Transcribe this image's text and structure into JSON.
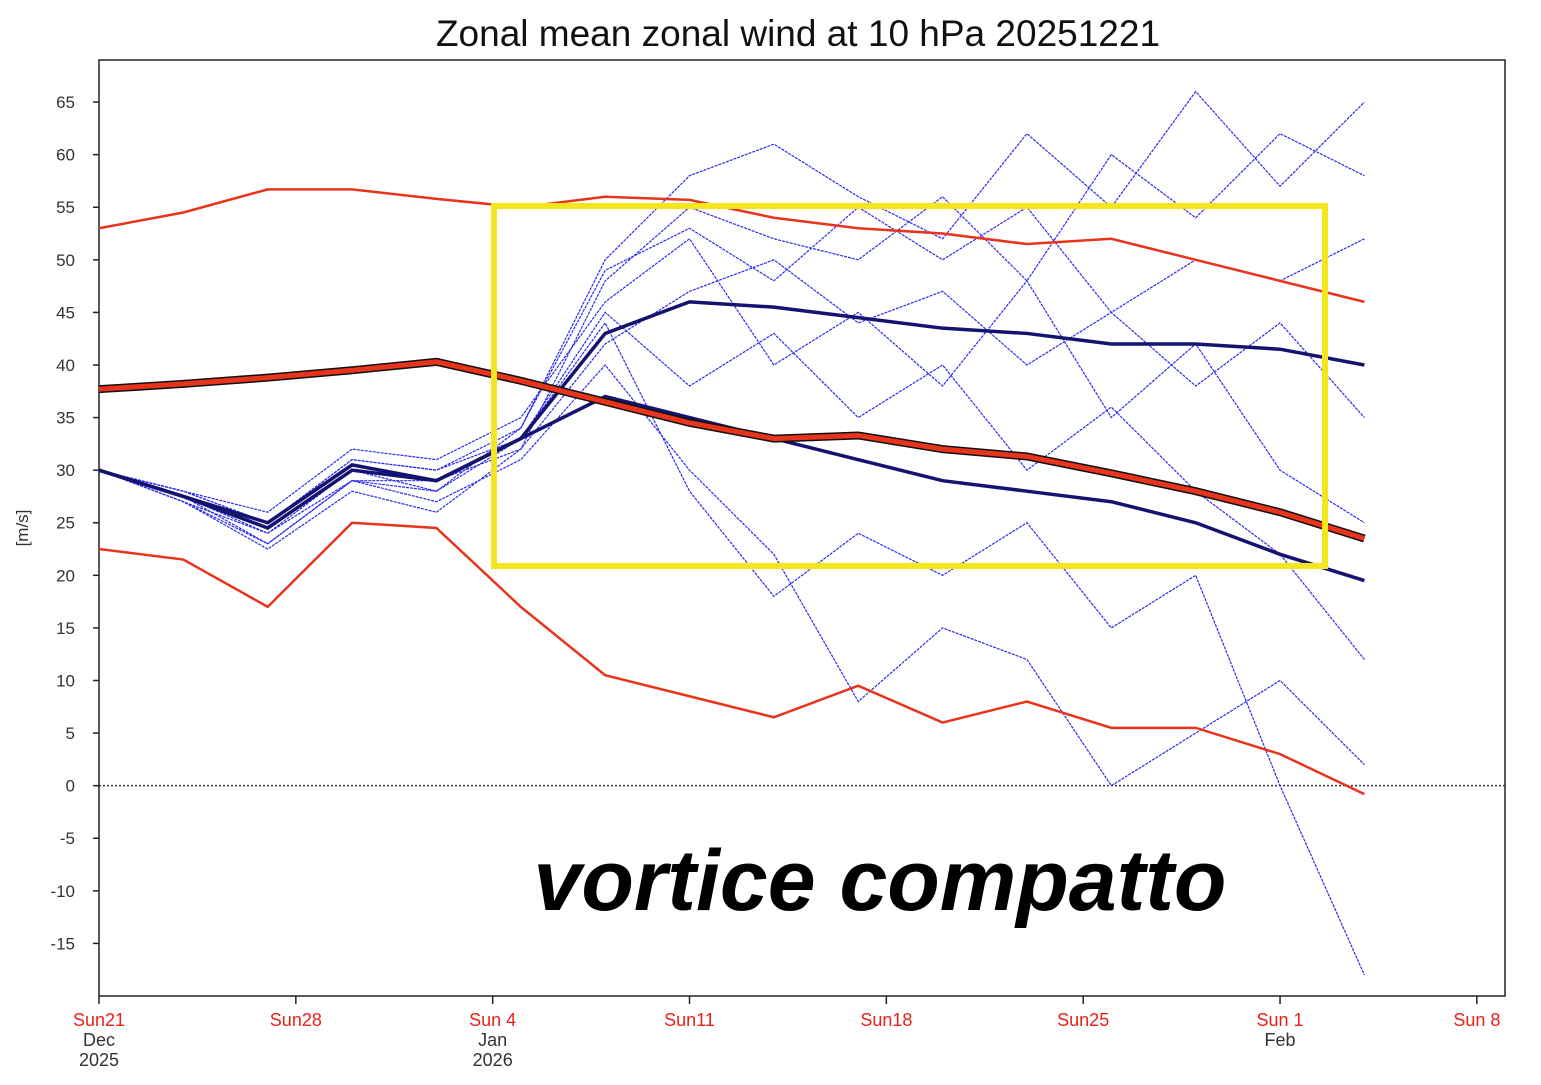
{
  "chart_data": {
    "type": "line",
    "title": "Zonal mean zonal wind at 10 hPa 20251221",
    "y_label": "[m/s]",
    "annotation": "vortice compatto",
    "x": [
      "2025-12-21",
      "2025-12-24",
      "2025-12-27",
      "2025-12-30",
      "2026-01-02",
      "2026-01-05",
      "2026-01-08",
      "2026-01-11",
      "2026-01-14",
      "2026-01-17",
      "2026-01-20",
      "2026-01-23",
      "2026-01-26",
      "2026-01-29",
      "2026-02-01",
      "2026-02-04"
    ],
    "xlim": [
      "2025-12-21",
      "2026-02-09"
    ],
    "xticks": [
      {
        "value": "2025-12-21",
        "label": "Sun21"
      },
      {
        "value": "2025-12-28",
        "label": "Sun28"
      },
      {
        "value": "2026-01-04",
        "label": "Sun 4"
      },
      {
        "value": "2026-01-11",
        "label": "Sun11"
      },
      {
        "value": "2026-01-18",
        "label": "Sun18"
      },
      {
        "value": "2026-01-25",
        "label": "Sun25"
      },
      {
        "value": "2026-02-01",
        "label": "Sun 1"
      },
      {
        "value": "2026-02-08",
        "label": "Sun 8"
      }
    ],
    "x_period_labels": [
      {
        "value": "2025-12-21",
        "label": "Dec",
        "year": "2025"
      },
      {
        "value": "2026-01-04",
        "label": "Jan",
        "year": "2026"
      },
      {
        "value": "2026-02-01",
        "label": "Feb"
      }
    ],
    "ylim": [
      -20,
      69
    ],
    "yticks": [
      -15,
      -10,
      -5,
      0,
      5,
      10,
      15,
      20,
      25,
      30,
      35,
      40,
      45,
      50,
      55,
      60,
      65
    ],
    "reference_line": 0,
    "tick_color": "#e8211a",
    "series": [
      {
        "color": "#2b2bf0",
        "values": [
          30,
          27,
          22.5,
          28,
          26,
          32,
          48,
          55,
          52,
          50,
          56,
          48,
          60,
          54,
          62,
          58
        ]
      },
      {
        "color": "#2b2bf0",
        "values": [
          30,
          27.5,
          23,
          29,
          27,
          31,
          40,
          30,
          22,
          8,
          15,
          12,
          0,
          5,
          10,
          2
        ]
      },
      {
        "color": "#2b2bf0",
        "values": [
          30,
          28,
          25,
          31,
          30,
          34,
          50,
          58,
          61,
          56,
          52,
          62,
          55,
          66,
          57,
          65
        ]
      },
      {
        "color": "#2b2bf0",
        "values": [
          30,
          27,
          24,
          30,
          28,
          33,
          44,
          28,
          18,
          24,
          20,
          25,
          15,
          20,
          0,
          -18
        ]
      },
      {
        "color": "#2b2bf0",
        "values": [
          30,
          28,
          26,
          32,
          31,
          35,
          46,
          52,
          40,
          45,
          38,
          48,
          35,
          42,
          30,
          25
        ]
      },
      {
        "color": "#2b2bf0",
        "values": [
          30,
          27.5,
          24,
          29,
          29,
          32,
          42,
          47,
          50,
          44,
          47,
          40,
          45,
          38,
          44,
          35
        ]
      },
      {
        "color": "#2b2bf0",
        "values": [
          30,
          28,
          25,
          31,
          30,
          33,
          45,
          38,
          43,
          35,
          40,
          30,
          36,
          28,
          22,
          12
        ]
      },
      {
        "color": "#2b2bf0",
        "values": [
          30,
          27,
          23,
          29,
          28,
          34,
          49,
          53,
          48,
          55,
          50,
          55,
          45,
          50,
          48,
          52
        ]
      },
      {
        "color": "#141470",
        "values": [
          30,
          27.5,
          25,
          30.5,
          29,
          33,
          37,
          35,
          33,
          31,
          29,
          28,
          27,
          25,
          22,
          19.5
        ]
      },
      {
        "color": "#141470",
        "values": [
          30,
          27.5,
          24.5,
          30,
          29,
          33,
          43,
          46,
          45.5,
          44.5,
          43.5,
          43,
          42,
          42,
          41.5,
          40
        ]
      },
      {
        "color": "#e8341c",
        "values": [
          53,
          54.5,
          56.7,
          56.7,
          55.8,
          55,
          56,
          55.7,
          54,
          53,
          52.5,
          51.5,
          52,
          50,
          48,
          46
        ]
      },
      {
        "color": "#e8341c",
        "values": [
          22.5,
          21.5,
          17,
          25,
          24.5,
          17,
          10.5,
          8.5,
          6.5,
          9.5,
          6,
          8,
          5.5,
          5.5,
          3,
          -0.8
        ]
      },
      {
        "color": "#e8341c",
        "values": [
          37.7,
          38.2,
          38.8,
          39.5,
          40.3,
          38.5,
          36.5,
          34.5,
          33,
          33.3,
          32,
          31.3,
          29.7,
          28,
          26,
          23.5
        ]
      }
    ]
  }
}
